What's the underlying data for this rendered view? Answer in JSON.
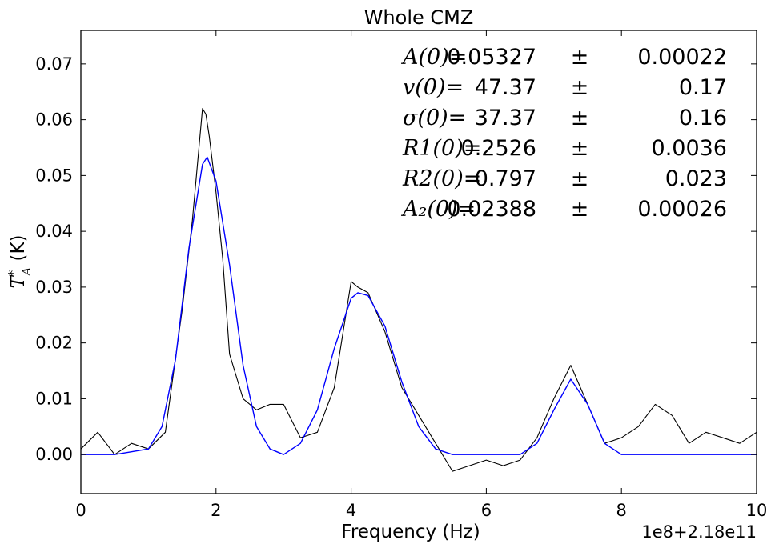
{
  "chart_data": {
    "type": "line",
    "title": "Whole CMZ",
    "xlabel": "Frequency (Hz)",
    "ylabel": "T*A (K)",
    "x_offset_text": "1e8+2.18e11",
    "xlim": [
      0,
      10
    ],
    "ylim": [
      -0.007,
      0.076
    ],
    "x_ticks": [
      0,
      2,
      4,
      6,
      8,
      10
    ],
    "x_tick_labels": [
      "0",
      "2",
      "4",
      "6",
      "8",
      "10"
    ],
    "y_ticks": [
      0.0,
      0.01,
      0.02,
      0.03,
      0.04,
      0.05,
      0.06,
      0.07
    ],
    "y_tick_labels": [
      "0.00",
      "0.01",
      "0.02",
      "0.03",
      "0.04",
      "0.05",
      "0.06",
      "0.07"
    ],
    "grid": false,
    "series": [
      {
        "kind": "spectrum",
        "color": "#000000",
        "x": [
          0.0,
          0.25,
          0.5,
          0.75,
          1.0,
          1.25,
          1.5,
          1.65,
          1.8,
          1.85,
          1.9,
          2.0,
          2.1,
          2.2,
          2.4,
          2.6,
          2.8,
          3.0,
          3.25,
          3.5,
          3.75,
          4.0,
          4.1,
          4.25,
          4.5,
          4.75,
          5.0,
          5.25,
          5.5,
          5.75,
          6.0,
          6.25,
          6.5,
          6.75,
          7.0,
          7.25,
          7.5,
          7.75,
          8.0,
          8.25,
          8.5,
          8.75,
          9.0,
          9.25,
          9.5,
          9.75,
          10.0
        ],
        "y": [
          0.001,
          0.004,
          0.0,
          0.002,
          0.001,
          0.004,
          0.026,
          0.042,
          0.062,
          0.061,
          0.057,
          0.047,
          0.035,
          0.018,
          0.01,
          0.008,
          0.009,
          0.009,
          0.003,
          0.004,
          0.012,
          0.031,
          0.03,
          0.029,
          0.022,
          0.012,
          0.007,
          0.002,
          -0.003,
          -0.002,
          -0.001,
          -0.002,
          -0.001,
          0.003,
          0.01,
          0.016,
          0.009,
          0.002,
          0.003,
          0.005,
          0.009,
          0.007,
          0.002,
          0.004,
          0.003,
          0.002,
          0.004
        ]
      },
      {
        "kind": "fit",
        "color": "#0000ff",
        "x": [
          0.0,
          0.5,
          1.0,
          1.2,
          1.4,
          1.6,
          1.8,
          1.87,
          2.0,
          2.2,
          2.4,
          2.6,
          2.8,
          3.0,
          3.25,
          3.5,
          3.75,
          4.0,
          4.1,
          4.25,
          4.5,
          4.75,
          5.0,
          5.25,
          5.5,
          6.0,
          6.5,
          6.75,
          7.0,
          7.25,
          7.5,
          7.75,
          8.0,
          8.5,
          10.0
        ],
        "y": [
          0.0,
          0.0,
          0.001,
          0.005,
          0.017,
          0.037,
          0.052,
          0.0533,
          0.049,
          0.034,
          0.016,
          0.005,
          0.001,
          0.0,
          0.002,
          0.008,
          0.019,
          0.028,
          0.029,
          0.0285,
          0.023,
          0.013,
          0.005,
          0.001,
          0.0,
          0.0,
          0.0,
          0.002,
          0.008,
          0.0135,
          0.009,
          0.002,
          0.0,
          0.0,
          0.0
        ]
      }
    ],
    "annotations": [
      {
        "symbol": "A(0)=",
        "value": "0.05327",
        "pm": "±",
        "error": "0.00022"
      },
      {
        "symbol": "v(0)=",
        "value": "47.37",
        "pm": "±",
        "error": "0.17"
      },
      {
        "symbol": "σ(0)=",
        "value": "37.37",
        "pm": "±",
        "error": "0.16"
      },
      {
        "symbol": "R1(0)=",
        "value": "0.2526",
        "pm": "±",
        "error": "0.0036"
      },
      {
        "symbol": "R2(0)=",
        "value": "0.797",
        "pm": "±",
        "error": "0.023"
      },
      {
        "symbol": "A₂(0)=",
        "value": "0.02388",
        "pm": "±",
        "error": "0.00026"
      }
    ]
  }
}
